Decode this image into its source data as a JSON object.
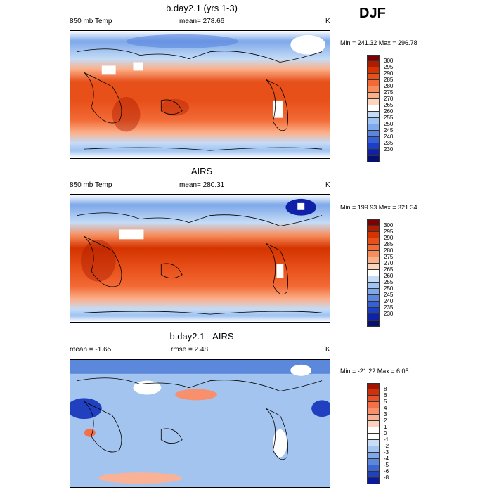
{
  "season": "DJF",
  "unit": "K",
  "panels": [
    {
      "title": "b.day2.1 (yrs 1-3)",
      "left_label": "850 mb Temp",
      "center_label": "mean= 278.66",
      "minmax": "Min = 241.32 Max = 296.78"
    },
    {
      "title": "AIRS",
      "left_label": "850 mb Temp",
      "center_label": "mean= 280.31",
      "minmax": "Min = 199.93 Max = 321.34"
    },
    {
      "title": "b.day2.1 - AIRS",
      "left_label": "mean =  -1.65",
      "center_label": "rmse =   2.48",
      "minmax": "Min = -21.22 Max =   6.05"
    }
  ],
  "colorbar_abs": {
    "labels": [
      "300",
      "295",
      "290",
      "285",
      "280",
      "275",
      "270",
      "265",
      "260",
      "255",
      "250",
      "245",
      "240",
      "235",
      "230"
    ],
    "colors": [
      "#7f0000",
      "#b01c00",
      "#d43400",
      "#e8501a",
      "#f26a35",
      "#f88d5c",
      "#fbb08a",
      "#fdd5bd",
      "#ffffff",
      "#c5dcf6",
      "#9fc3f2",
      "#7da8ea",
      "#5a86e0",
      "#3560d6",
      "#1c3fc8",
      "#0f21a8",
      "#061070"
    ]
  },
  "colorbar_diff": {
    "labels": [
      "8",
      "6",
      "5",
      "4",
      "3",
      "2",
      "1",
      "0",
      "-1",
      "-2",
      "-3",
      "-4",
      "-5",
      "-6",
      "-8"
    ],
    "colors": [
      "#a01400",
      "#d0300a",
      "#e85028",
      "#f47048",
      "#f8906e",
      "#fab296",
      "#fcd2bc",
      "#ffffff",
      "#ffffff",
      "#c8dcf6",
      "#a4c4f0",
      "#80a8e8",
      "#5c88dc",
      "#3a66d0",
      "#2040c0",
      "#0a1a9a"
    ]
  }
}
